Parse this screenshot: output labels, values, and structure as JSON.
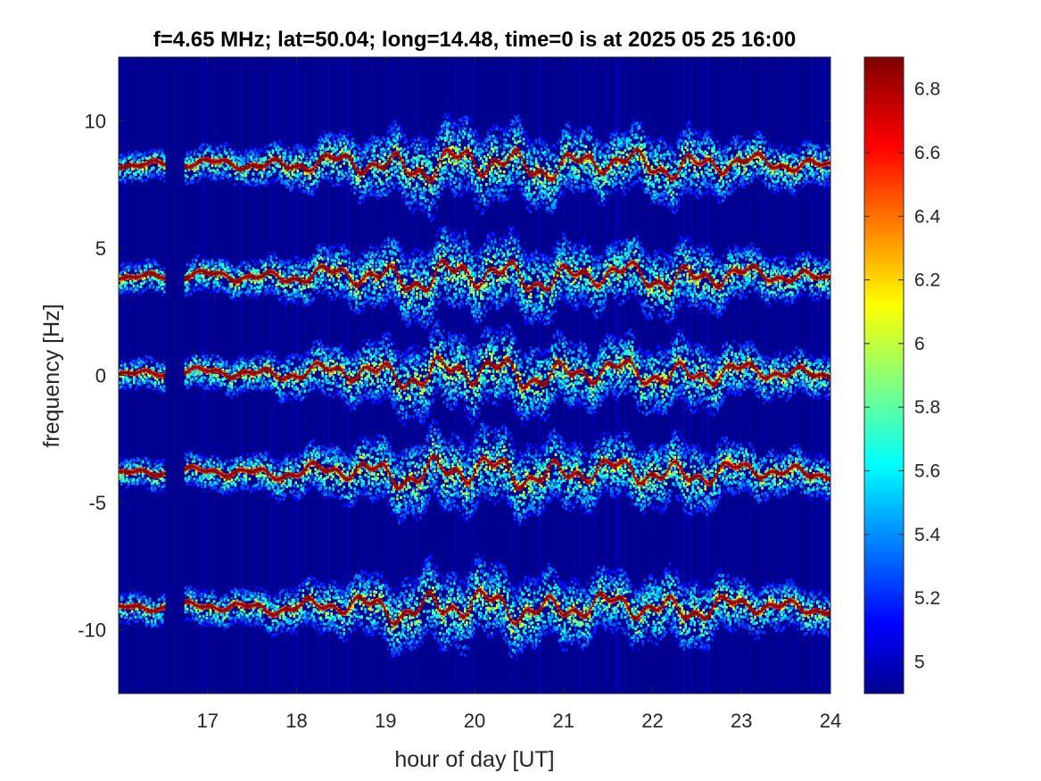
{
  "chart_data": {
    "type": "heatmap",
    "title": "f=4.65 MHz;  lat=50.04; long=14.48, time=0 is at 2025 05 25 16:00",
    "xlabel": "hour of day [UT]",
    "ylabel": "frequency [Hz]",
    "xlim": [
      16.0,
      24.0
    ],
    "ylim": [
      -12.5,
      12.5
    ],
    "x_ticks": [
      17,
      18,
      19,
      20,
      21,
      22,
      23,
      24
    ],
    "y_ticks": [
      -10,
      -5,
      0,
      5,
      10
    ],
    "colorbar": {
      "range": [
        4.9,
        6.9
      ],
      "ticks": [
        "5",
        "5.2",
        "5.4",
        "5.6",
        "5.8",
        "6",
        "6.2",
        "6.4",
        "6.6",
        "6.8"
      ],
      "tick_values": [
        5.0,
        5.2,
        5.4,
        5.6,
        5.8,
        6.0,
        6.2,
        6.4,
        6.6,
        6.8
      ],
      "colormap": "jet",
      "colors": [
        "#00008f",
        "#0000ff",
        "#00ffff",
        "#ffff00",
        "#ff0000",
        "#800000"
      ]
    },
    "background_level": 4.95,
    "gap_hours": [
      16.5,
      16.72
    ],
    "traces": [
      {
        "center_hz": 8.3,
        "intensity": 6.9
      },
      {
        "center_hz": 3.9,
        "intensity": 6.9
      },
      {
        "center_hz": 0.1,
        "intensity": 6.9
      },
      {
        "center_hz": -3.8,
        "intensity": 6.9
      },
      {
        "center_hz": -9.1,
        "intensity": 6.9
      }
    ],
    "activity_envelope": [
      {
        "x": 16.0,
        "amp_hz": 0.15
      },
      {
        "x": 17.5,
        "amp_hz": 0.25
      },
      {
        "x": 18.5,
        "amp_hz": 0.45
      },
      {
        "x": 19.5,
        "amp_hz": 0.75
      },
      {
        "x": 20.5,
        "amp_hz": 0.7
      },
      {
        "x": 21.5,
        "amp_hz": 0.55
      },
      {
        "x": 22.4,
        "amp_hz": 0.65
      },
      {
        "x": 23.0,
        "amp_hz": 0.4
      },
      {
        "x": 24.0,
        "amp_hz": 0.3
      }
    ]
  }
}
